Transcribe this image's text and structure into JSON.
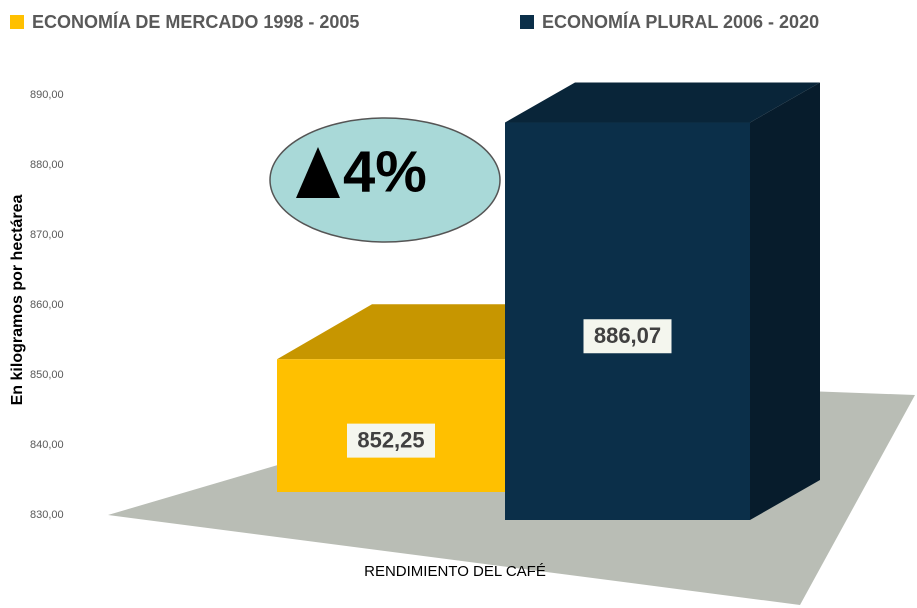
{
  "chart_data": {
    "type": "bar3d",
    "y_axis_label": "En kilogramos por hectárea",
    "categories": [
      "RENDIMIENTO DEL CAFÉ"
    ],
    "annotation": "4%",
    "series": [
      {
        "name": "ECONOMÍA DE MERCADO 1998 - 2005",
        "color": "#ffc000",
        "values": [
          852.25
        ],
        "value_labels": [
          "852,25"
        ]
      },
      {
        "name": "ECONOMÍA PLURAL 2006 - 2020",
        "color": "#0b2f49",
        "values": [
          886.07
        ],
        "value_labels": [
          "886,07"
        ]
      }
    ],
    "ylim": [
      830,
      890
    ],
    "yticks": [
      {
        "value": 830,
        "label": "830,00"
      },
      {
        "value": 840,
        "label": "840,00"
      },
      {
        "value": 850,
        "label": "850,00"
      },
      {
        "value": 860,
        "label": "860,00"
      },
      {
        "value": 870,
        "label": "870,00"
      },
      {
        "value": 880,
        "label": "880,00"
      },
      {
        "value": 890,
        "label": "890,00"
      }
    ],
    "legend": "top"
  }
}
